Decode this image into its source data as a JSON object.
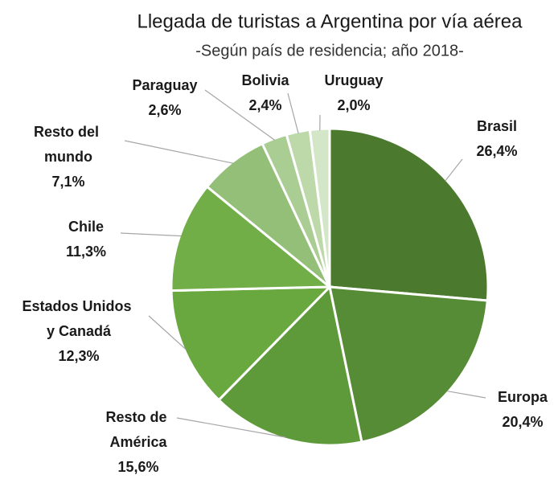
{
  "chart_data": {
    "type": "pie",
    "title": "Llegada de turistas a Argentina por vía aérea",
    "subtitle": "-Según país de residencia; año 2018-",
    "categories": [
      "Brasil",
      "Europa",
      "Resto de América",
      "Estados Unidos y Canadá",
      "Chile",
      "Resto del mundo",
      "Paraguay",
      "Bolivia",
      "Uruguay"
    ],
    "values": [
      26.4,
      20.4,
      15.6,
      12.3,
      11.3,
      7.1,
      2.6,
      2.4,
      2.0
    ],
    "value_labels": [
      "26,4%",
      "20,4%",
      "15,6%",
      "12,3%",
      "11,3%",
      "7,1%",
      "2,6%",
      "2,4%",
      "2,0%"
    ],
    "colors": [
      "#4b7a2f",
      "#568c35",
      "#5f9a3a",
      "#69a73f",
      "#71ae48",
      "#93bf78",
      "#a9cd92",
      "#bdd9aa",
      "#d3e6c7"
    ]
  }
}
